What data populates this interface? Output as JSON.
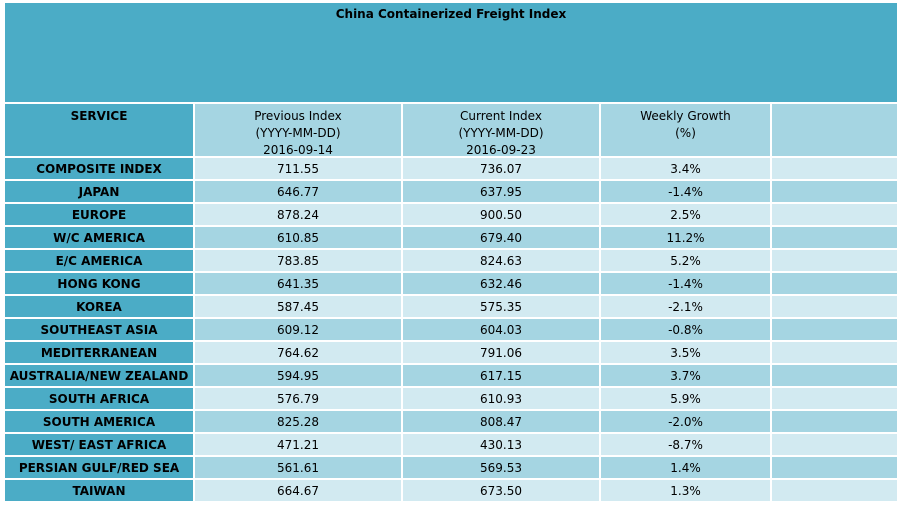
{
  "title": "China Containerized Freight Index",
  "table": {
    "header": [
      [
        "SERVICE"
      ],
      [
        "Previous Index",
        "(YYYY-MM-DD)",
        "2016-09-14"
      ],
      [
        "Current Index",
        "(YYYY-MM-DD)",
        "2016-09-23"
      ],
      [
        "Weekly Growth",
        "(%)"
      ]
    ],
    "rows": [
      [
        "COMPOSITE INDEX",
        "711.55",
        "736.07",
        "3.4%"
      ],
      [
        "JAPAN",
        "646.77",
        "637.95",
        "-1.4%"
      ],
      [
        "EUROPE",
        "878.24",
        "900.50",
        "2.5%"
      ],
      [
        "W/C AMERICA",
        "610.85",
        "679.40",
        "11.2%"
      ],
      [
        "E/C AMERICA",
        "783.85",
        "824.63",
        "5.2%"
      ],
      [
        "HONG KONG",
        "641.35",
        "632.46",
        "-1.4%"
      ],
      [
        "KOREA",
        "587.45",
        "575.35",
        "-2.1%"
      ],
      [
        "SOUTHEAST ASIA",
        "609.12",
        "604.03",
        "-0.8%"
      ],
      [
        "MEDITERRANEAN",
        "764.62",
        "791.06",
        "3.5%"
      ],
      [
        "AUSTRALIA/NEW ZEALAND",
        "594.95",
        "617.15",
        "3.7%"
      ],
      [
        "SOUTH AFRICA",
        "576.79",
        "610.93",
        "5.9%"
      ],
      [
        "SOUTH AMERICA",
        "825.28",
        "808.47",
        "-2.0%"
      ],
      [
        "WEST/ EAST AFRICA",
        "471.21",
        "430.13",
        "-8.7%"
      ],
      [
        "PERSIAN GULF/RED SEA",
        "561.61",
        "569.53",
        "1.4%"
      ],
      [
        "TAIWAN",
        "664.67",
        "673.50",
        "1.3%"
      ]
    ]
  }
}
